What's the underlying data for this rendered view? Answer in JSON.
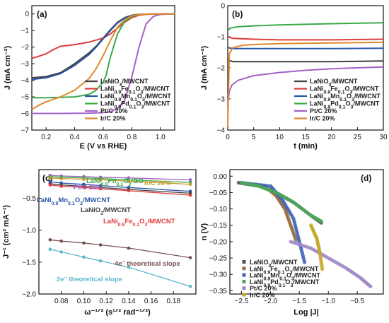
{
  "chart_data": [
    {
      "panel": "(a)",
      "type": "line",
      "xlabel": "E (V vs RHE)",
      "ylabel": "J (mA cm⁻²)",
      "xlim": [
        0.1,
        1.1
      ],
      "ylim": [
        -7,
        0.5
      ],
      "xticks": [
        0.2,
        0.4,
        0.6,
        0.8,
        1.0
      ],
      "yticks": [
        -7,
        -6,
        -5,
        -4,
        -3,
        -2,
        -1,
        0
      ],
      "legend": [
        {
          "sub": [
            "LaNiO",
            "3",
            "/MWCNT"
          ]
        },
        {
          "sub": [
            "LaNi",
            "0.9",
            "Fe",
            "0.1",
            "O",
            "3",
            "/MWCNT"
          ]
        },
        {
          "sub": [
            "LaNi",
            "0.9",
            "Mn",
            "0.1",
            "O",
            "3",
            "/MWCNT"
          ]
        },
        {
          "sub": [
            "LaNi",
            "0.9",
            "Pd",
            "0.1",
            "O",
            "3",
            "/MWCNT"
          ]
        },
        {
          "sub": [
            "Pt/C 20%"
          ]
        },
        {
          "sub": [
            "Ir/C 20%"
          ]
        }
      ],
      "series": [
        {
          "name": "LaNiO3/MWCNT",
          "color": "#404040",
          "x": [
            0.1,
            0.2,
            0.3,
            0.4,
            0.5,
            0.55,
            0.6,
            0.65,
            0.7,
            0.75,
            0.8,
            0.85,
            0.9,
            1.0,
            1.1
          ],
          "y": [
            -3.85,
            -3.78,
            -3.55,
            -3.0,
            -2.35,
            -1.95,
            -1.45,
            -0.95,
            -0.5,
            -0.22,
            -0.08,
            -0.03,
            -0.01,
            0,
            0
          ]
        },
        {
          "name": "LaNi0.9Fe0.1O3/MWCNT",
          "color": "#e03c3c",
          "x": [
            0.1,
            0.15,
            0.2,
            0.25,
            0.3,
            0.4,
            0.5,
            0.6,
            0.65,
            0.7,
            0.75,
            0.8,
            0.85,
            0.9,
            1.0,
            1.1
          ],
          "y": [
            -2.68,
            -2.55,
            -2.4,
            -2.15,
            -1.95,
            -1.85,
            -1.7,
            -1.45,
            -1.2,
            -0.85,
            -0.5,
            -0.22,
            -0.08,
            -0.02,
            0,
            0
          ]
        },
        {
          "name": "LaNi0.9Mn0.1O3/MWCNT",
          "color": "#2b56a6",
          "x": [
            0.1,
            0.2,
            0.3,
            0.4,
            0.5,
            0.55,
            0.6,
            0.65,
            0.7,
            0.75,
            0.8,
            0.85,
            0.9,
            1.0,
            1.1
          ],
          "y": [
            -3.95,
            -3.85,
            -3.6,
            -3.1,
            -2.45,
            -2.0,
            -1.5,
            -1.0,
            -0.55,
            -0.25,
            -0.1,
            -0.04,
            -0.01,
            0,
            0
          ]
        },
        {
          "name": "LaNi0.9Pd0.1O3/MWCNT",
          "color": "#3aaa4a",
          "x": [
            0.1,
            0.2,
            0.3,
            0.4,
            0.5,
            0.55,
            0.6,
            0.62,
            0.65,
            0.7,
            0.75,
            0.8,
            0.85,
            0.9,
            1.0,
            1.1
          ],
          "y": [
            -5.05,
            -5.05,
            -5.03,
            -5.0,
            -4.85,
            -4.6,
            -4.1,
            -3.7,
            -2.6,
            -1.2,
            -0.45,
            -0.15,
            -0.05,
            -0.01,
            0,
            0
          ]
        },
        {
          "name": "Pt/C 20%",
          "color": "#a262c8",
          "x": [
            0.1,
            0.3,
            0.5,
            0.6,
            0.65,
            0.7,
            0.75,
            0.8,
            0.85,
            0.9,
            0.95,
            1.0,
            1.1
          ],
          "y": [
            -6.0,
            -6.0,
            -5.98,
            -5.95,
            -5.9,
            -5.7,
            -5.2,
            -3.8,
            -2.0,
            -0.6,
            -0.15,
            -0.03,
            0
          ]
        },
        {
          "name": "Ir/C 20%",
          "color": "#e08a2c",
          "x": [
            0.1,
            0.15,
            0.2,
            0.3,
            0.4,
            0.5,
            0.55,
            0.6,
            0.65,
            0.7,
            0.75,
            0.8,
            0.85,
            0.9,
            1.0,
            1.1
          ],
          "y": [
            -5.75,
            -5.5,
            -5.3,
            -5.0,
            -4.6,
            -3.9,
            -3.3,
            -2.5,
            -1.6,
            -0.8,
            -0.35,
            -0.12,
            -0.04,
            -0.01,
            0,
            0
          ]
        }
      ]
    },
    {
      "panel": "(b)",
      "type": "line",
      "xlabel": "t (min)",
      "ylabel": "J (mA cm⁻²)",
      "xlim": [
        0,
        30
      ],
      "ylim": [
        -4,
        0
      ],
      "xticks": [
        0,
        5,
        10,
        15,
        20,
        25,
        30
      ],
      "yticks": [
        -4,
        -3,
        -2,
        -1,
        0
      ],
      "legend": [
        {
          "sub": [
            "LaNiO",
            "3",
            "/MWCNT"
          ]
        },
        {
          "sub": [
            "LaNi",
            "0.9",
            "Fe",
            "0.1",
            "O",
            "3",
            "/MWCNT"
          ]
        },
        {
          "sub": [
            "LaNi",
            "0.9",
            "Mn",
            "0.1",
            "O",
            "3",
            "/MWCNT"
          ]
        },
        {
          "sub": [
            "LaNi",
            "0.9",
            "Pd",
            "0.1",
            "O",
            "3",
            "/MWCNT"
          ]
        },
        {
          "sub": [
            "Pt/C 20%"
          ]
        },
        {
          "sub": [
            "Ir/C 20%"
          ]
        }
      ],
      "series": [
        {
          "name": "LaNiO3/MWCNT",
          "color": "#404040",
          "x": [
            0,
            1,
            5,
            10,
            20,
            30
          ],
          "y": [
            -1.75,
            -1.8,
            -1.8,
            -1.8,
            -1.8,
            -1.78
          ]
        },
        {
          "name": "LaNi0.9Fe0.1O3/MWCNT",
          "color": "#e03c3c",
          "x": [
            0,
            1,
            5,
            10,
            20,
            30
          ],
          "y": [
            -1.0,
            -1.05,
            -1.08,
            -1.1,
            -1.1,
            -1.08
          ]
        },
        {
          "name": "LaNi0.9Mn0.1O3/MWCNT",
          "color": "#2b56a6",
          "x": [
            0,
            1,
            5,
            10,
            20,
            30
          ],
          "y": [
            -1.35,
            -1.38,
            -1.38,
            -1.38,
            -1.38,
            -1.37
          ]
        },
        {
          "name": "LaNi0.9Pd0.1O3/MWCNT",
          "color": "#3aaa4a",
          "x": [
            0,
            0.5,
            2,
            5,
            10,
            20,
            30
          ],
          "y": [
            -0.8,
            -0.72,
            -0.68,
            -0.65,
            -0.62,
            -0.58,
            -0.55
          ]
        },
        {
          "name": "Pt/C 20%",
          "color": "#a262c8",
          "x": [
            0,
            0.3,
            0.8,
            2,
            5,
            10,
            15,
            20,
            25,
            30
          ],
          "y": [
            -3.2,
            -2.75,
            -2.55,
            -2.4,
            -2.25,
            -2.15,
            -2.08,
            -2.03,
            -2.0,
            -1.97
          ]
        },
        {
          "name": "Ir/C 20%",
          "color": "#e08a2c",
          "x": [
            0,
            0.3,
            1,
            3,
            5,
            10,
            20,
            30
          ],
          "y": [
            -3.9,
            -1.55,
            -1.35,
            -1.27,
            -1.25,
            -1.22,
            -1.2,
            -1.18
          ]
        }
      ]
    },
    {
      "panel": "(c)",
      "type": "scatter",
      "xlabel": "ω⁻¹ᐟ² (s¹ᐟ² rad⁻¹ᐟ²)",
      "ylabel": "J⁻¹ (cm² mA⁻¹)",
      "xlim": [
        0.06,
        0.2
      ],
      "ylim": [
        -2.0,
        -0.05
      ],
      "xticks": [
        0.08,
        0.1,
        0.12,
        0.14,
        0.16,
        0.18
      ],
      "yticks": [
        -2.0,
        -1.5,
        -1.0,
        -0.5
      ],
      "x": [
        0.07,
        0.08,
        0.1,
        0.115,
        0.14,
        0.195
      ],
      "series": [
        {
          "name": "Pt/C 20%",
          "color": "#a262c8",
          "y": [
            -0.14,
            -0.15,
            -0.16,
            -0.17,
            -0.18,
            -0.21
          ]
        },
        {
          "name": "LaNi0.9Pd0.1O2/GO",
          "color": "#3aaa4a",
          "y": [
            -0.16,
            -0.17,
            -0.18,
            -0.19,
            -0.21,
            -0.25
          ]
        },
        {
          "name": "Ir/C 20%",
          "color": "#c49a2e",
          "y": [
            -0.18,
            -0.19,
            -0.2,
            -0.21,
            -0.23,
            -0.28
          ]
        },
        {
          "name": "LaNi0.9Mn0.1O2/MWCNT",
          "color": "#2b56a6",
          "y": [
            -0.24,
            -0.26,
            -0.28,
            -0.3,
            -0.33,
            -0.39
          ]
        },
        {
          "name": "LaNiO3/MWCNT",
          "color": "#404040",
          "y": [
            -0.27,
            -0.29,
            -0.31,
            -0.33,
            -0.36,
            -0.42
          ]
        },
        {
          "name": "LaNi0.9Fe0.1O3/MWCNT",
          "color": "#e03c3c",
          "y": [
            -0.29,
            -0.31,
            -0.33,
            -0.35,
            -0.38,
            -0.45
          ]
        },
        {
          "name": "4e⁻ theoretical slope",
          "color": "#7a5050",
          "y": [
            -1.15,
            -1.17,
            -1.2,
            -1.23,
            -1.28,
            -1.43
          ]
        },
        {
          "name": "2e⁻ theoretical slope",
          "color": "#5ab8c8",
          "y": [
            -1.3,
            -1.34,
            -1.42,
            -1.48,
            -1.58,
            -1.88
          ]
        }
      ],
      "annotations": [
        {
          "sub": [
            "Pt/C 20%"
          ],
          "color": "#a262c8"
        },
        {
          "sub": [
            "LaNi",
            "0.9",
            "Pd",
            "0.1",
            "O",
            "2",
            "/GO"
          ],
          "color": "#3aaa4a"
        },
        {
          "sub": [
            "Ir/C 20%"
          ],
          "color": "#c49a2e"
        },
        {
          "sub": [
            "LaNi",
            "0.9",
            "Mn",
            "0.1",
            "O",
            "2",
            "/MWCNT"
          ],
          "color": "#2b56a6"
        },
        {
          "sub": [
            "LaNiO",
            "3",
            "/MWCNT"
          ],
          "color": "#404040"
        },
        {
          "sub": [
            "LaNi",
            "0.9",
            "Fe",
            "0.1",
            "O",
            "3",
            "/MWCNT"
          ],
          "color": "#e03c3c"
        },
        {
          "sub": [
            "4e",
            "−",
            " theoretical slope"
          ],
          "color": "#7a5050"
        },
        {
          "sub": [
            "2e",
            "−",
            " theoretical slope"
          ],
          "color": "#5ab8c8"
        }
      ]
    },
    {
      "panel": "(d)",
      "type": "scatter",
      "xlabel": "Log |J|",
      "ylabel": "n (V)",
      "xlim": [
        -2.7,
        -0.05
      ],
      "ylim": [
        -0.36,
        0.02
      ],
      "xticks": [
        -2.5,
        -2.0,
        -1.5,
        -1.0,
        -0.5
      ],
      "yticks": [
        -0.35,
        -0.3,
        -0.25,
        -0.2,
        -0.15,
        -0.1,
        -0.05,
        0.0
      ],
      "legend": [
        {
          "sub": [
            "LaNiO",
            "3",
            "/MWCNT"
          ]
        },
        {
          "sub": [
            "LaNi",
            "0.9",
            "Fe",
            "0.1",
            "O",
            "3",
            "/MWCNT"
          ]
        },
        {
          "sub": [
            "LaNi",
            "0.9",
            "Mn",
            "0.1",
            "O",
            "3",
            "/MWCNT"
          ]
        },
        {
          "sub": [
            "LaNi",
            "0.9",
            "Pd",
            "0.1",
            "O",
            "3",
            "/MWCNT"
          ]
        },
        {
          "sub": [
            "Pt/C 20%"
          ]
        },
        {
          "sub": [
            "Ir/C 20%"
          ]
        }
      ],
      "series": [
        {
          "name": "LaNiO3/MWCNT",
          "color": "#555555",
          "marker": "square",
          "x": [
            -2.55,
            -2.2,
            -1.9,
            -1.6,
            -1.3,
            -1.1
          ],
          "y": [
            -0.02,
            -0.03,
            -0.05,
            -0.08,
            -0.12,
            -0.145
          ]
        },
        {
          "name": "LaNi0.9Fe0.1O3/MWCNT",
          "color": "#9a7040",
          "marker": "circle",
          "x": [
            -2.5,
            -2.1,
            -1.9,
            -1.75,
            -1.65,
            -1.55
          ],
          "y": [
            -0.02,
            -0.03,
            -0.06,
            -0.1,
            -0.15,
            -0.2
          ]
        },
        {
          "name": "LaNi0.9Mn0.1O3/MWCNT",
          "color": "#3a5fb8",
          "marker": "triangle",
          "x": [
            -2.5,
            -2.0,
            -1.8,
            -1.6,
            -1.5,
            -1.4
          ],
          "y": [
            -0.02,
            -0.03,
            -0.07,
            -0.13,
            -0.2,
            -0.27
          ]
        },
        {
          "name": "LaNi0.9Pd0.1O3/MWCNT",
          "color": "#4aa85a",
          "marker": "triangle-down",
          "x": [
            -2.5,
            -2.2,
            -1.9,
            -1.6,
            -1.3,
            -1.1
          ],
          "y": [
            -0.02,
            -0.03,
            -0.05,
            -0.08,
            -0.12,
            -0.14
          ]
        },
        {
          "name": "Pt/C 20%",
          "color": "#a088c8",
          "marker": "diamond",
          "x": [
            -1.65,
            -1.3,
            -1.0,
            -0.7,
            -0.45,
            -0.25
          ],
          "y": [
            -0.2,
            -0.22,
            -0.25,
            -0.28,
            -0.31,
            -0.34
          ]
        },
        {
          "name": "Ir/C 20%",
          "color": "#c4a82c",
          "marker": "triangle-left",
          "x": [
            -1.3,
            -1.2,
            -1.15,
            -1.1
          ],
          "y": [
            -0.15,
            -0.19,
            -0.23,
            -0.29
          ]
        }
      ]
    }
  ]
}
